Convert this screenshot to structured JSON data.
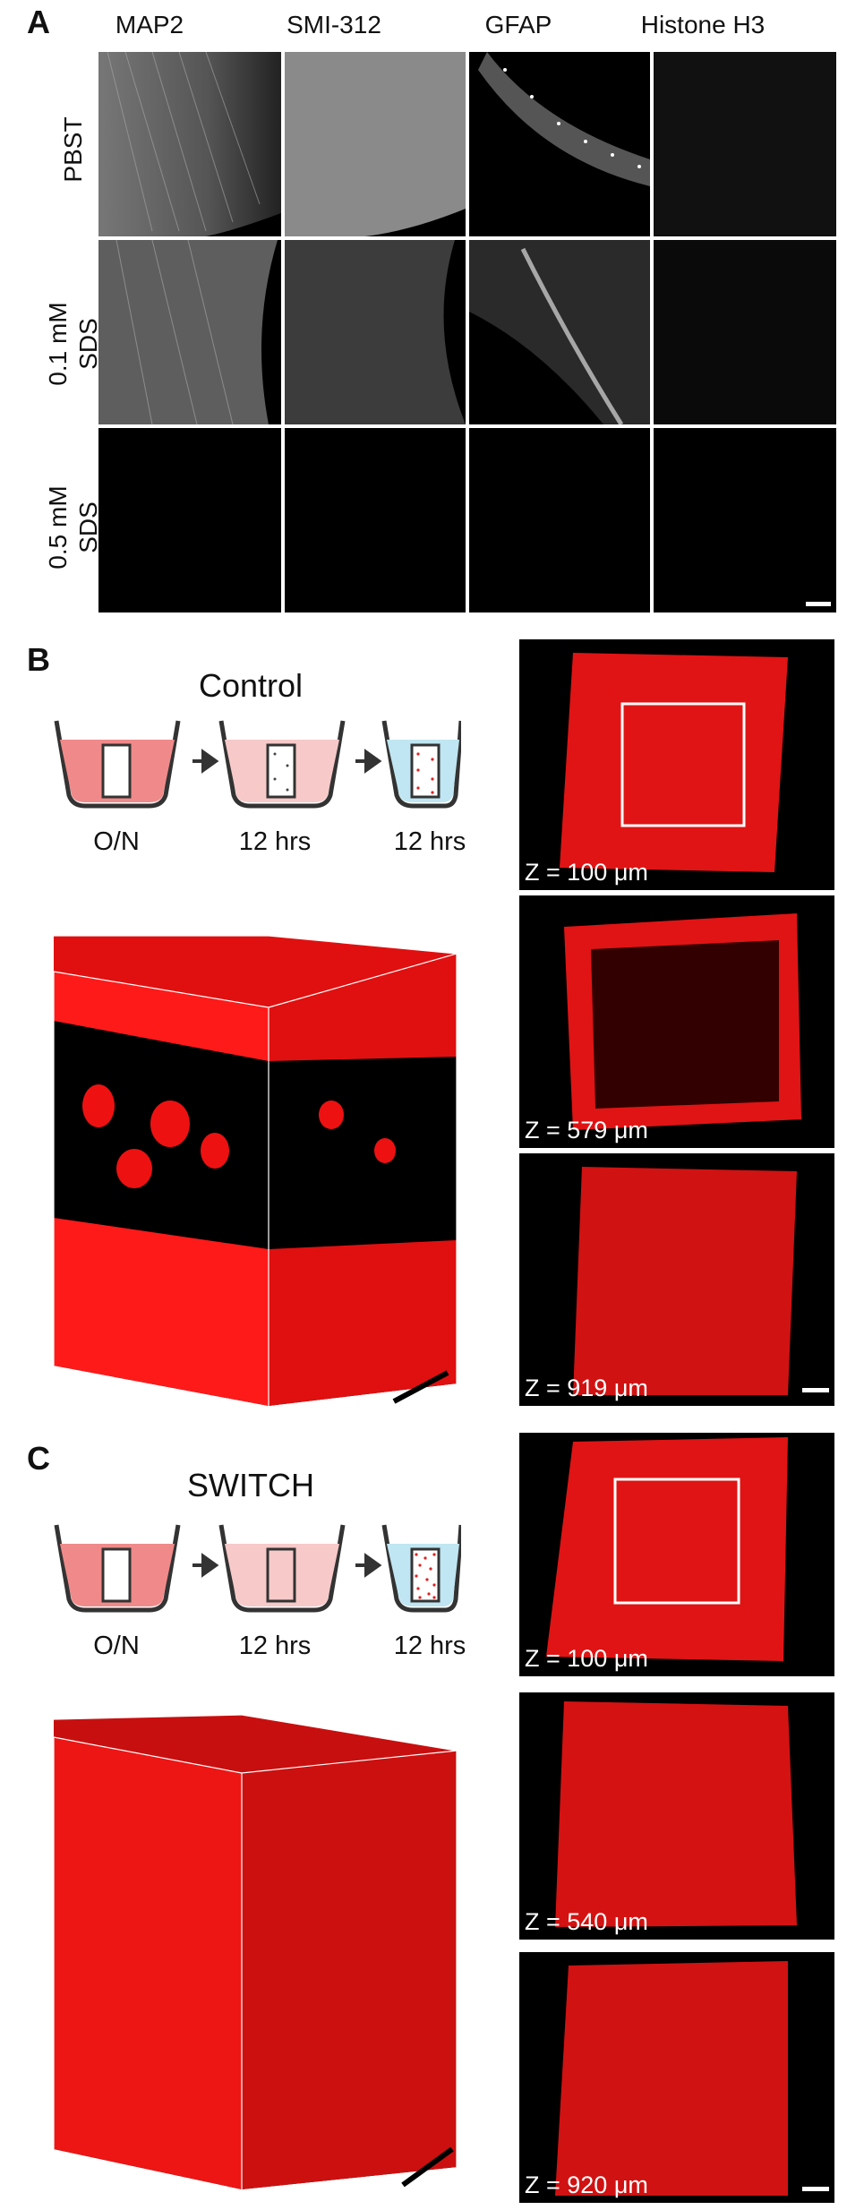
{
  "panel_a": {
    "letter": "A",
    "columns": [
      "MAP2",
      "SMI-312",
      "GFAP",
      "Histone H3"
    ],
    "rows": [
      {
        "line1": "PBST",
        "line2": ""
      },
      {
        "line1": "0.1 mM",
        "line2": "SDS"
      },
      {
        "line1": "0.5 mM",
        "line2": "SDS"
      }
    ]
  },
  "panel_b": {
    "letter": "B",
    "title": "Control",
    "steps": [
      "O/N",
      "12 hrs",
      "12 hrs"
    ],
    "slices": [
      "Z = 100 μm",
      "Z = 579 μm",
      "Z = 919 μm"
    ]
  },
  "panel_c": {
    "letter": "C",
    "title": "SWITCH",
    "steps": [
      "O/N",
      "12 hrs",
      "12 hrs"
    ],
    "slices": [
      "Z = 100 μm",
      "Z = 540 μm",
      "Z = 920 μm"
    ]
  },
  "colors": {
    "stain_red": "#ff1a1a",
    "tube_pink": "#f08a8a",
    "tube_light_pink": "#f7c9c9",
    "tube_blue": "#bfe6f2",
    "arrow": "#333333"
  }
}
